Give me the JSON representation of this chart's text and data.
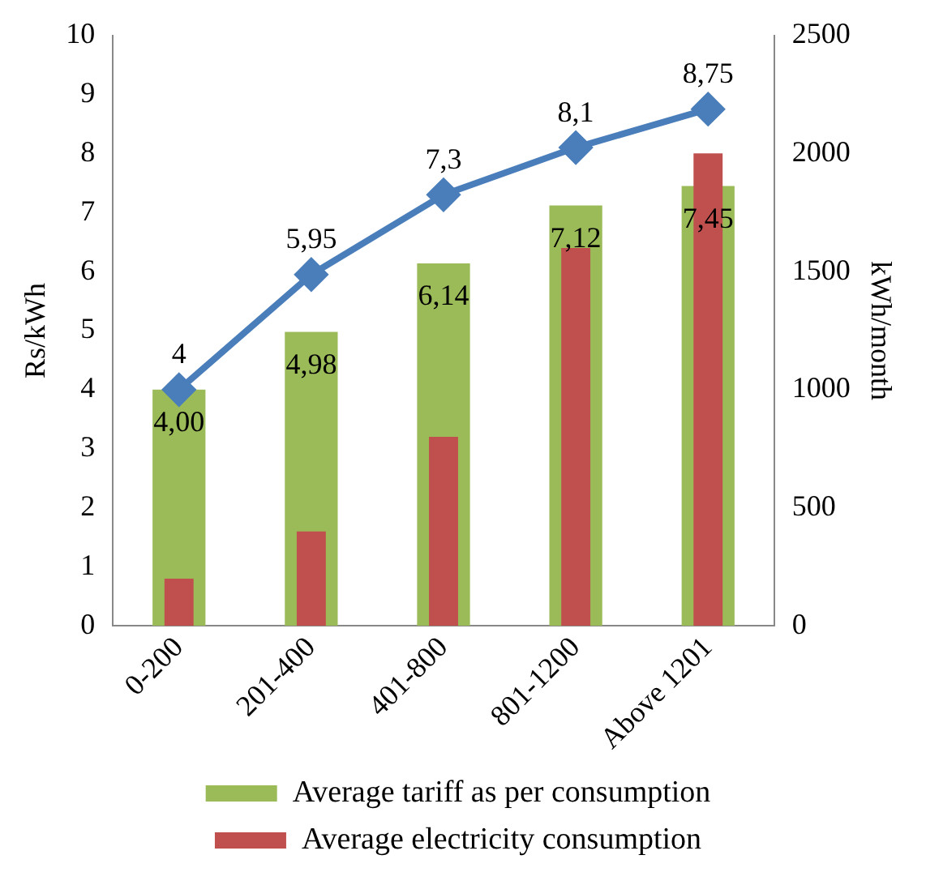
{
  "chart_data": {
    "type": "bar",
    "categories": [
      "0-200",
      "201-400",
      "401-800",
      "801-1200",
      "Above 1201"
    ],
    "ylabel": "Rs/kWh",
    "y2label": "kWh/month",
    "ylim": [
      0,
      10
    ],
    "yticks": [
      0,
      1,
      2,
      3,
      4,
      5,
      6,
      7,
      8,
      9,
      10
    ],
    "y2lim": [
      0,
      2500
    ],
    "y2ticks": [
      0,
      500,
      1000,
      1500,
      2000,
      2500
    ],
    "legend": "bottom",
    "grid": false,
    "marker": "diamond",
    "series": [
      {
        "name": "Average tariff as per consumption",
        "color": "#9bbb59",
        "values": [
          4,
          4.98,
          6.14,
          7.12,
          7.45
        ],
        "value_labels": [
          "4,00",
          "4,98",
          "6,14",
          "7,12",
          "7,45"
        ]
      },
      {
        "name": "Average electricity consumption",
        "color": "#c0504d",
        "axis": "y2",
        "values": [
          200,
          400,
          800,
          1600,
          2000
        ]
      },
      {
        "type": "line",
        "color": "#4a7ebb",
        "values": [
          4,
          5.95,
          7.3,
          8.1,
          8.75
        ],
        "value_labels": [
          "4",
          "5,95",
          "7,3",
          "8,1",
          "8,75"
        ]
      }
    ]
  }
}
